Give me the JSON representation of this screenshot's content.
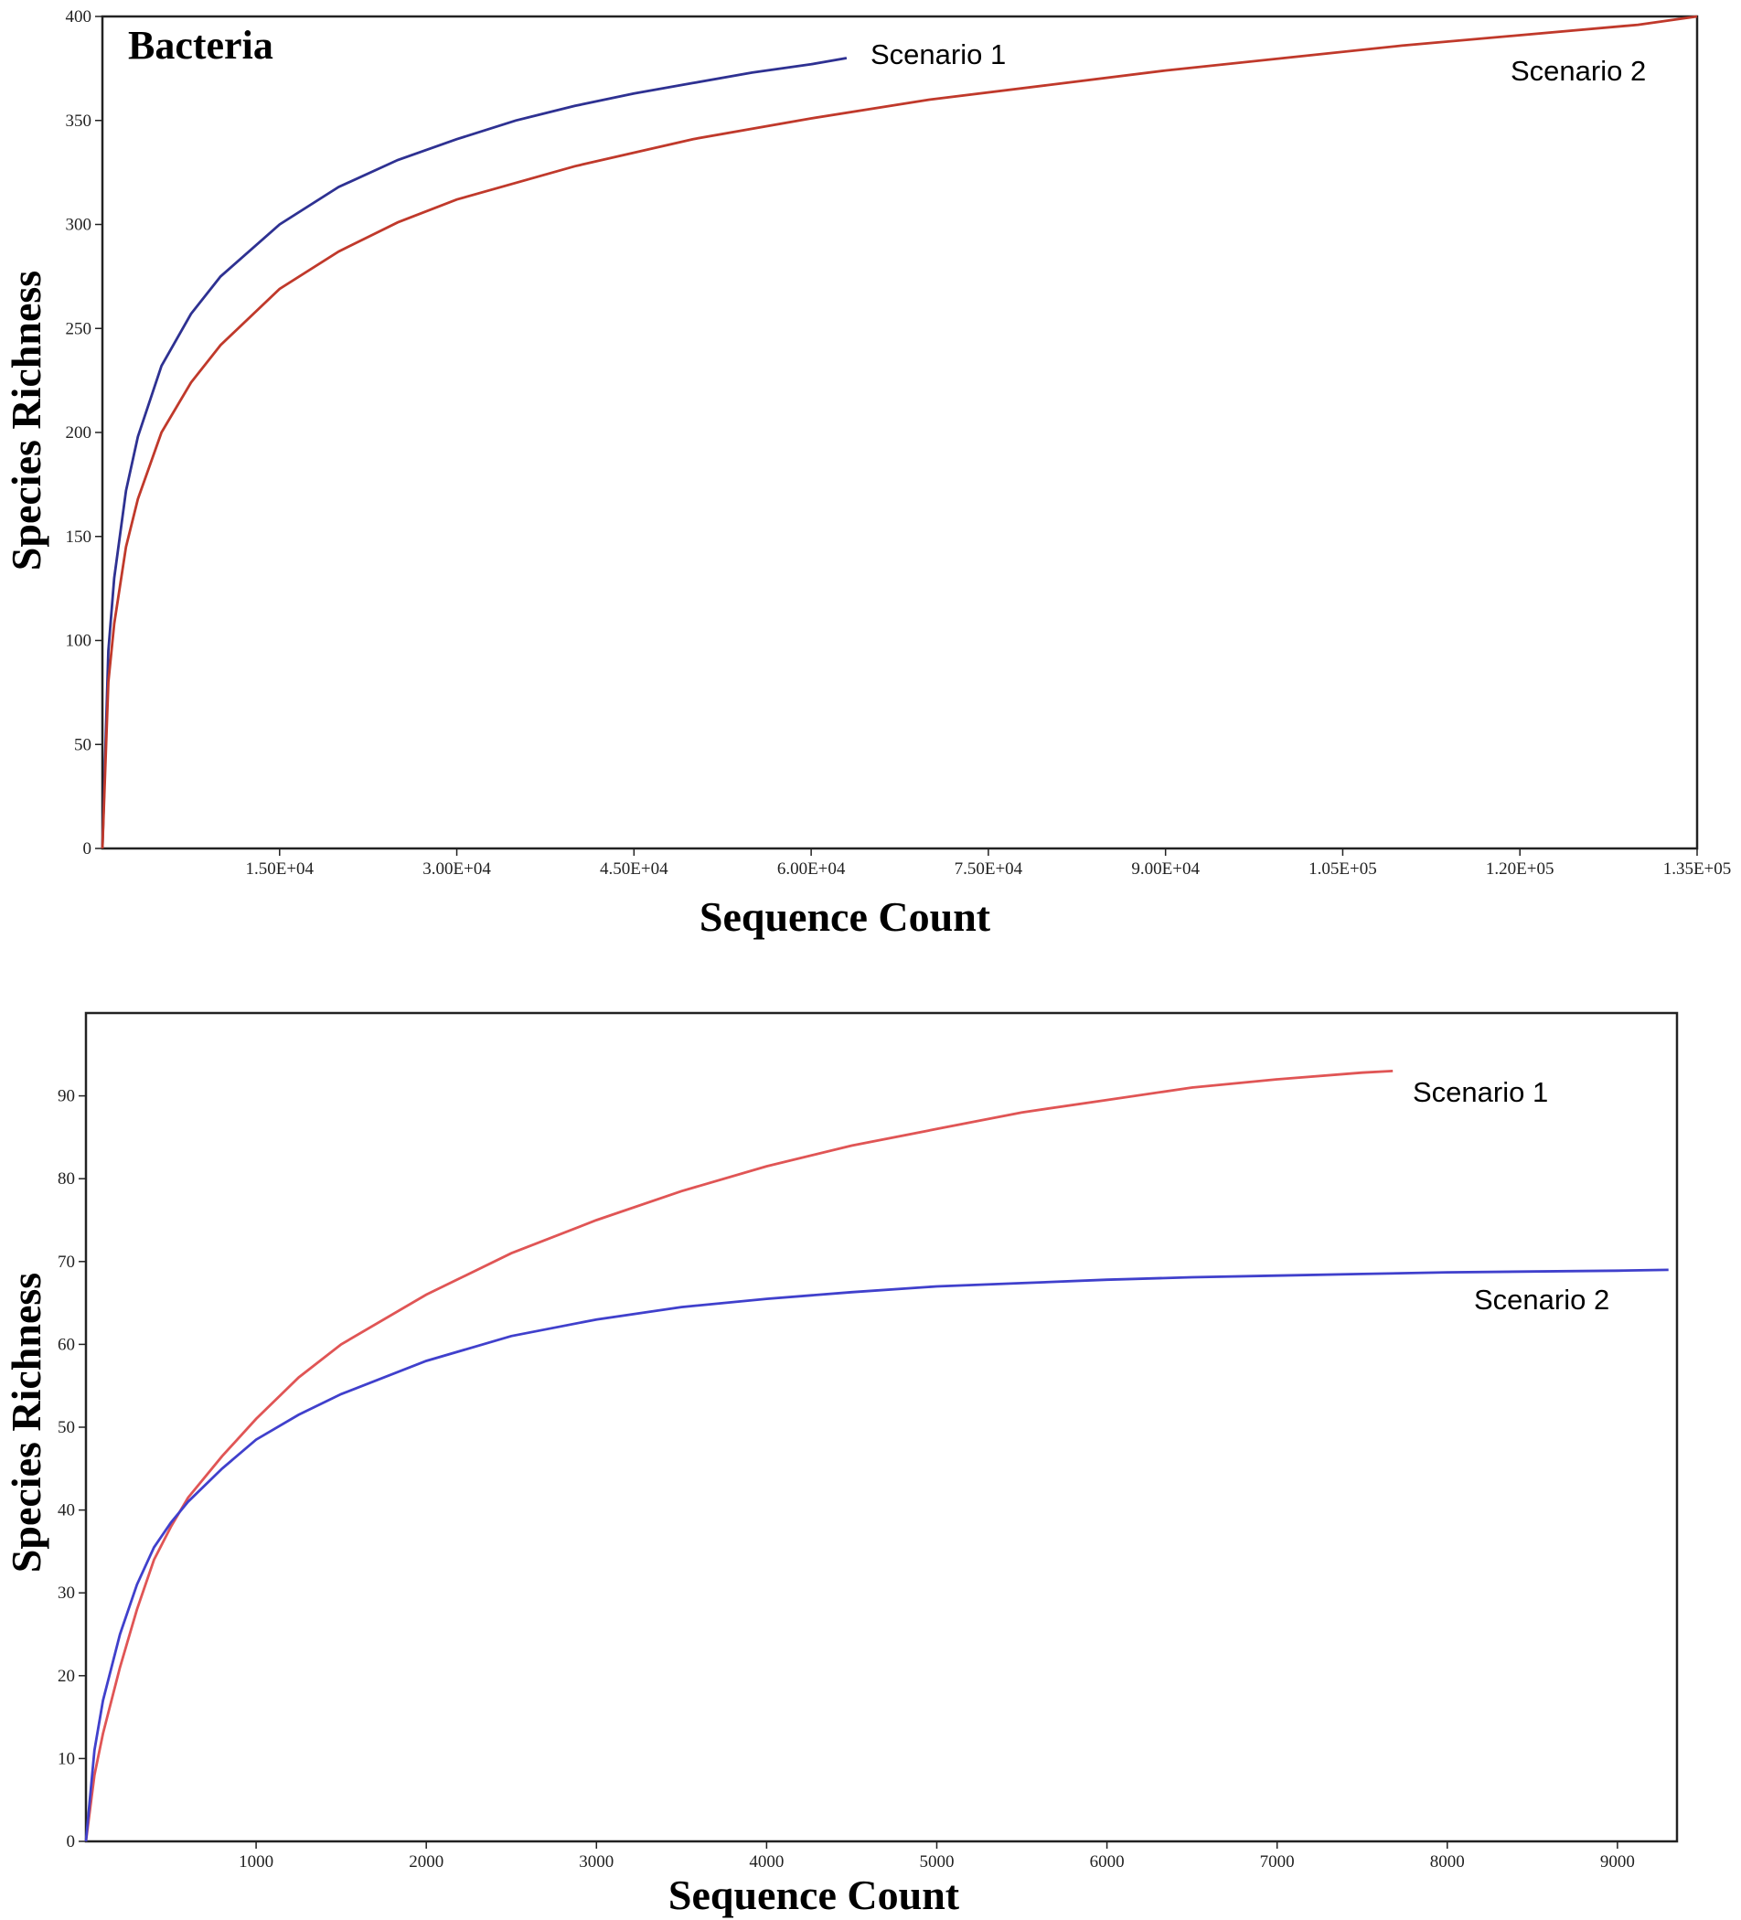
{
  "chart_data": [
    {
      "type": "line",
      "title": "Bacteria",
      "xlabel": "Sequence Count",
      "ylabel": "Species Richness",
      "xlim": [
        0,
        135000
      ],
      "ylim": [
        0,
        400
      ],
      "grid": false,
      "x_tick_values": [
        15000,
        30000,
        45000,
        60000,
        75000,
        90000,
        105000,
        120000,
        135000
      ],
      "x_tick_labels": [
        "1.50E+04",
        "3.00E+04",
        "4.50E+04",
        "6.00E+04",
        "7.50E+04",
        "9.00E+04",
        "1.05E+05",
        "1.20E+05",
        "1.35E+05"
      ],
      "y_ticks": [
        0,
        50,
        100,
        150,
        200,
        250,
        300,
        350,
        400
      ],
      "series": [
        {
          "name": "Scenario 1",
          "color": "#2e3192",
          "x": [
            0,
            500,
            1000,
            2000,
            3000,
            5000,
            7500,
            10000,
            15000,
            20000,
            25000,
            30000,
            35000,
            40000,
            45000,
            50000,
            55000,
            60000,
            63000
          ],
          "y": [
            0,
            95,
            130,
            172,
            198,
            232,
            257,
            275,
            300,
            318,
            331,
            341,
            350,
            357,
            363,
            368,
            373,
            377,
            380
          ]
        },
        {
          "name": "Scenario 2",
          "color": "#c0392b",
          "x": [
            0,
            500,
            1000,
            2000,
            3000,
            5000,
            7500,
            10000,
            15000,
            20000,
            25000,
            30000,
            40000,
            50000,
            60000,
            70000,
            80000,
            90000,
            100000,
            110000,
            120000,
            130000,
            135000
          ],
          "y": [
            0,
            80,
            108,
            145,
            168,
            200,
            224,
            242,
            269,
            287,
            301,
            312,
            328,
            341,
            351,
            360,
            367,
            374,
            380,
            386,
            391,
            396,
            400
          ]
        }
      ]
    },
    {
      "type": "line",
      "title": "",
      "xlabel": "Sequence Count",
      "ylabel": "Species Richness",
      "xlim": [
        0,
        9350
      ],
      "ylim": [
        0,
        100
      ],
      "grid": false,
      "x_tick_values": [
        1000,
        2000,
        3000,
        4000,
        5000,
        6000,
        7000,
        8000,
        9000
      ],
      "x_tick_labels": [
        "1000",
        "2000",
        "3000",
        "4000",
        "5000",
        "6000",
        "7000",
        "8000",
        "9000"
      ],
      "y_ticks": [
        0,
        10,
        20,
        30,
        40,
        50,
        60,
        70,
        80,
        90
      ],
      "series": [
        {
          "name": "Scenario 1",
          "color": "#e05555",
          "x": [
            0,
            50,
            100,
            200,
            300,
            400,
            500,
            600,
            800,
            1000,
            1250,
            1500,
            2000,
            2500,
            3000,
            3500,
            4000,
            4500,
            5000,
            5500,
            6000,
            6500,
            7000,
            7500,
            7680
          ],
          "y": [
            0,
            8,
            13,
            21,
            28,
            34,
            38,
            41.5,
            46.5,
            51,
            56,
            60,
            66,
            71,
            75,
            78.5,
            81.5,
            84,
            86,
            88,
            89.5,
            91,
            92,
            92.8,
            93
          ]
        },
        {
          "name": "Scenario 2",
          "color": "#4040cc",
          "x": [
            0,
            50,
            100,
            200,
            300,
            400,
            500,
            600,
            800,
            1000,
            1250,
            1500,
            2000,
            2500,
            3000,
            3500,
            4000,
            4500,
            5000,
            5500,
            6000,
            6500,
            7000,
            7500,
            8000,
            8500,
            9000,
            9300
          ],
          "y": [
            0,
            11,
            17,
            25,
            31,
            35.5,
            38.5,
            41,
            45,
            48.5,
            51.5,
            54,
            58,
            61,
            63,
            64.5,
            65.5,
            66.3,
            67,
            67.4,
            67.8,
            68.1,
            68.3,
            68.5,
            68.7,
            68.8,
            68.9,
            69
          ]
        }
      ]
    }
  ]
}
